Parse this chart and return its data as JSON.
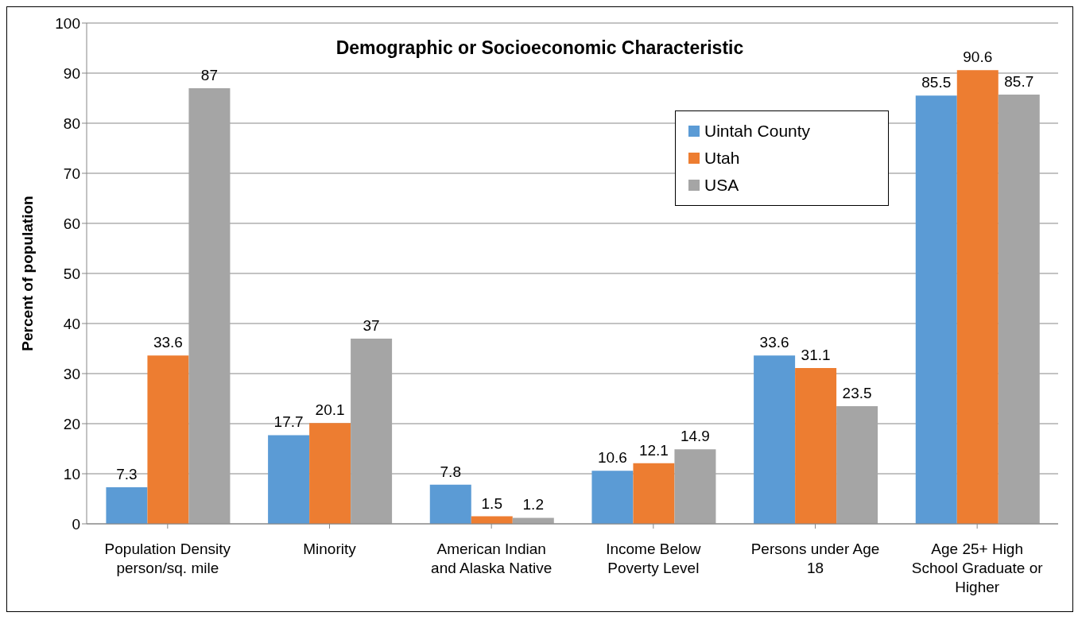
{
  "chart_data": {
    "type": "bar",
    "title": "Demographic or Socioeconomic Characteristic",
    "ylabel": "Percent of population",
    "categories": [
      "Population Density person/sq. mile",
      "Minority",
      "American Indian and Alaska Native",
      "Income Below Poverty Level",
      "Persons under Age 18",
      "Age 25+  High School Graduate or Higher"
    ],
    "series": [
      {
        "name": "Uintah County",
        "color": "#5b9bd5",
        "values": [
          7.3,
          17.7,
          7.8,
          10.6,
          33.6,
          85.5
        ]
      },
      {
        "name": "Utah",
        "color": "#ed7d31",
        "values": [
          33.6,
          20.1,
          1.5,
          12.1,
          31.1,
          90.6
        ]
      },
      {
        "name": "USA",
        "color": "#a5a5a5",
        "values": [
          87,
          37,
          1.2,
          14.9,
          23.5,
          85.7
        ]
      }
    ],
    "ylim": [
      0,
      100
    ],
    "yticks": [
      0,
      10,
      20,
      30,
      40,
      50,
      60,
      70,
      80,
      90,
      100
    ],
    "grid": "y",
    "legend": "top right",
    "data_labels": true
  }
}
